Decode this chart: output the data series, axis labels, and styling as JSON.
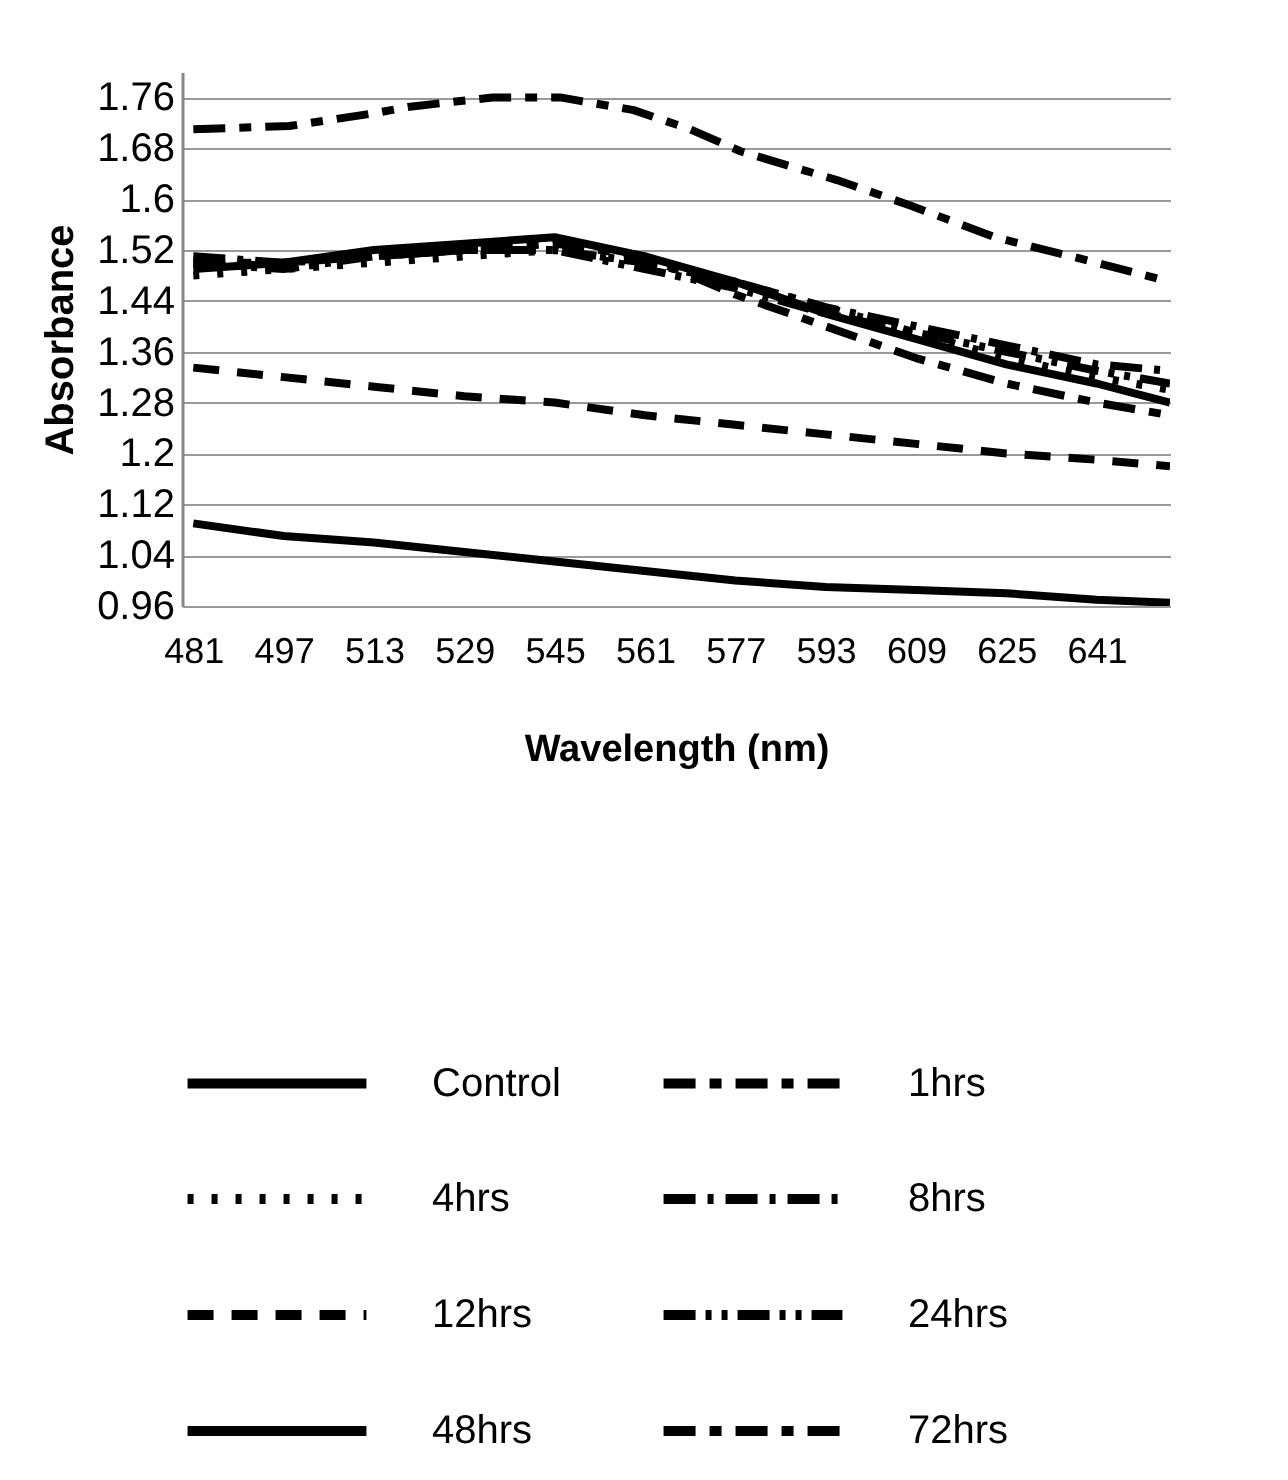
{
  "chart_data": {
    "type": "line",
    "xlabel": "Wavelength (nm)",
    "ylabel": "Absorbance",
    "x": [
      481,
      497,
      513,
      529,
      545,
      561,
      577,
      593,
      609,
      625,
      641,
      654
    ],
    "xlim": [
      479,
      654
    ],
    "xticks": [
      481,
      497,
      513,
      529,
      545,
      561,
      577,
      593,
      609,
      625,
      641
    ],
    "ylim": [
      0.96,
      1.8
    ],
    "yticks": [
      0.96,
      1.04,
      1.12,
      1.2,
      1.28,
      1.36,
      1.44,
      1.52,
      1.6,
      1.68,
      1.76
    ],
    "grid": "y",
    "legend": "bottom",
    "series": [
      {
        "name": "Control",
        "color": "#000000",
        "line_style": "solid",
        "values": [
          1.09,
          1.07,
          1.06,
          1.045,
          1.03,
          1.015,
          1.0,
          0.99,
          0.985,
          0.98,
          0.97,
          0.965
        ]
      },
      {
        "name": "1hrs",
        "color": "#000000",
        "line_style": "dashed",
        "values": [
          1.5,
          1.5,
          1.51,
          1.52,
          1.53,
          1.51,
          1.45,
          1.4,
          1.35,
          1.31,
          1.28,
          1.26
        ]
      },
      {
        "name": "4hrs",
        "color": "#000000",
        "line_style": "dotted",
        "values": [
          1.48,
          1.49,
          1.5,
          1.51,
          1.52,
          1.5,
          1.47,
          1.43,
          1.39,
          1.35,
          1.32,
          1.3
        ]
      },
      {
        "name": "8hrs",
        "color": "#000000",
        "line_style": "dashed",
        "values": [
          1.51,
          1.5,
          1.51,
          1.52,
          1.52,
          1.5,
          1.47,
          1.43,
          1.4,
          1.37,
          1.34,
          1.33
        ]
      },
      {
        "name": "12hrs",
        "color": "#000000",
        "line_style": "dashed",
        "values": [
          1.335,
          1.32,
          1.305,
          1.29,
          1.28,
          1.26,
          1.245,
          1.23,
          1.215,
          1.2,
          1.19,
          1.18
        ]
      },
      {
        "name": "24hrs",
        "color": "#000000",
        "line_style": "dashed",
        "values": [
          1.5,
          1.49,
          1.51,
          1.52,
          1.52,
          1.49,
          1.46,
          1.42,
          1.39,
          1.36,
          1.33,
          1.31
        ]
      },
      {
        "name": "48hrs",
        "color": "#000000",
        "line_style": "solid",
        "values": [
          1.49,
          1.5,
          1.52,
          1.53,
          1.54,
          1.51,
          1.47,
          1.42,
          1.38,
          1.34,
          1.31,
          1.28
        ]
      },
      {
        "name": "72hrs",
        "color": "#000000",
        "line_style": "dashed",
        "x": [
          481,
          498,
          513,
          519,
          534,
          546,
          559,
          569,
          578,
          595,
          608,
          623,
          641,
          654
        ],
        "values": [
          1.71,
          1.715,
          1.735,
          1.745,
          1.76,
          1.76,
          1.74,
          1.71,
          1.675,
          1.63,
          1.59,
          1.54,
          1.5,
          1.47
        ]
      }
    ]
  }
}
